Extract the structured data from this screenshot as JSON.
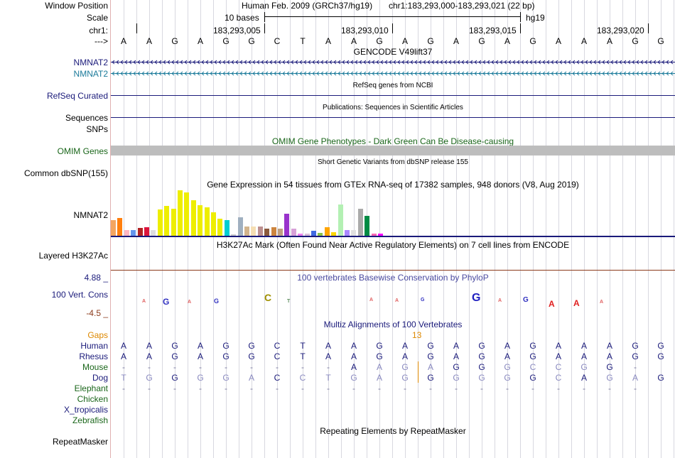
{
  "labels": {
    "window_position": "Window Position",
    "scale": "Scale",
    "chr": "chr1:",
    "strand": "--->",
    "nmnat2_a": "NMNAT2",
    "nmnat2_b": "NMNAT2",
    "refseq": "RefSeq Curated",
    "sequences": "Sequences",
    "snps": "SNPs",
    "omim": "OMIM Genes",
    "common_dbsnp": "Common dbSNP(155)",
    "gtex_gene": "NMNAT2",
    "h3k27ac": "Layered H3K27Ac",
    "cons": "100 Vert. Cons",
    "cons_max": "4.88 _",
    "cons_min": "-4.5 _",
    "gaps": "Gaps",
    "species": [
      "Human",
      "Rhesus",
      "Mouse",
      "Dog",
      "Elephant",
      "Chicken",
      "X_tropicalis",
      "Zebrafish"
    ],
    "repeatmasker": "RepeatMasker"
  },
  "colors": {
    "navy": "#1a1a7a",
    "teal": "#1a7a9a",
    "dark_green": "#1a661a",
    "orange": "#dd8800",
    "omim_bar": "#bdbdbd",
    "h3k_line": "#8b3a1a",
    "phylop_title": "#4a4aa0"
  },
  "header": {
    "assembly": "Human Feb. 2009 (GRCh37/hg19)",
    "position": "chr1:183,293,000-183,293,021 (22 bp)",
    "scale_label": "10 bases",
    "scale_db": "hg19",
    "coords": [
      "183,293,005",
      "183,293,010",
      "183,293,015",
      "183,293,020"
    ]
  },
  "sequence": [
    "A",
    "A",
    "G",
    "A",
    "G",
    "G",
    "C",
    "T",
    "A",
    "A",
    "G",
    "A",
    "G",
    "A",
    "G",
    "A",
    "G",
    "A",
    "A",
    "A",
    "G",
    "G"
  ],
  "tracks": {
    "gencode_title": "GENCODE V49lift37",
    "refseq_title": "RefSeq genes from NCBI",
    "publications_title": "Publications: Sequences in Scientific Articles",
    "omim_title": "OMIM Gene Phenotypes - Dark Green Can Be Disease-causing",
    "dbsnp_title": "Short Genetic Variants from dbSNP release 155",
    "gtex_title": "Gene Expression in 54 tissues from GTEx RNA-seq of 17382 samples, 948 donors (V8, Aug 2019)",
    "h3k27ac_title": "H3K27Ac Mark (Often Found Near Active Regulatory Elements) on 7 cell lines from ENCODE",
    "phylop_title": "100 vertebrates Basewise Conservation by PhyloP",
    "multiz_title": "Multiz Alignments of 100 Vertebrates",
    "gap_count": "13",
    "repeatmasker_title": "Repeating Elements by RepeatMasker"
  },
  "gtex_bars": [
    {
      "h": 0.35,
      "c": "#f4a560"
    },
    {
      "h": 0.39,
      "c": "#ff7f0e"
    },
    {
      "h": 0.12,
      "c": "#ffb6c1"
    },
    {
      "h": 0.12,
      "c": "#6495ed"
    },
    {
      "h": 0.17,
      "c": "#b22222"
    },
    {
      "h": 0.19,
      "c": "#dc143c"
    },
    {
      "h": 0.12,
      "c": "#ddd"
    },
    {
      "h": 0.58,
      "c": "#eeee00"
    },
    {
      "h": 0.65,
      "c": "#eeee00"
    },
    {
      "h": 0.6,
      "c": "#eeee00"
    },
    {
      "h": 1.0,
      "c": "#eeee00"
    },
    {
      "h": 0.96,
      "c": "#eeee00"
    },
    {
      "h": 0.78,
      "c": "#eeee00"
    },
    {
      "h": 0.67,
      "c": "#eeee00"
    },
    {
      "h": 0.62,
      "c": "#eeee00"
    },
    {
      "h": 0.52,
      "c": "#eeee00"
    },
    {
      "h": 0.37,
      "c": "#eeee00"
    },
    {
      "h": 0.35,
      "c": "#00ced1"
    },
    {
      "h": 0.03,
      "c": "#ccc"
    },
    {
      "h": 0.4,
      "c": "#a0b0c0"
    },
    {
      "h": 0.2,
      "c": "#d2b48c"
    },
    {
      "h": 0.2,
      "c": "#f5deb3"
    },
    {
      "h": 0.2,
      "c": "#bc8f8f"
    },
    {
      "h": 0.15,
      "c": "#8b5a3c"
    },
    {
      "h": 0.19,
      "c": "#cd853f"
    },
    {
      "h": 0.15,
      "c": "#c0a080"
    },
    {
      "h": 0.49,
      "c": "#9933cc"
    },
    {
      "h": 0.16,
      "c": "#d8a0d8"
    },
    {
      "h": 0.05,
      "c": "#ee82ee"
    },
    {
      "h": 0.04,
      "c": "#d8bfd8"
    },
    {
      "h": 0.11,
      "c": "#4169e1"
    },
    {
      "h": 0.07,
      "c": "#8bc34a"
    },
    {
      "h": 0.19,
      "c": "#ffa500"
    },
    {
      "h": 0.08,
      "c": "#ffd700"
    },
    {
      "h": 0.69,
      "c": "#b3f0b3"
    },
    {
      "h": 0.12,
      "c": "#aa88ff"
    },
    {
      "h": 0.12,
      "c": "#e0e0e0"
    },
    {
      "h": 0.6,
      "c": "#aaaaaa"
    },
    {
      "h": 0.44,
      "c": "#008b45"
    },
    {
      "h": 0.05,
      "c": "#ff69b4"
    },
    {
      "h": 0.04,
      "c": "#ff00ff"
    }
  ],
  "alignments": {
    "human": {
      "seq": [
        "A",
        "A",
        "G",
        "A",
        "G",
        "G",
        "C",
        "T",
        "A",
        "A",
        "G",
        "A",
        "G",
        "A",
        "G",
        "A",
        "G",
        "A",
        "A",
        "A",
        "G",
        "G"
      ],
      "style": [
        "n",
        "n",
        "n",
        "n",
        "n",
        "n",
        "n",
        "n",
        "n",
        "n",
        "n",
        "n",
        "n",
        "n",
        "n",
        "n",
        "n",
        "n",
        "n",
        "n",
        "n",
        "n"
      ]
    },
    "rhesus": {
      "seq": [
        "A",
        "A",
        "G",
        "A",
        "G",
        "G",
        "C",
        "T",
        "A",
        "A",
        "G",
        "A",
        "G",
        "A",
        "G",
        "A",
        "G",
        "A",
        "A",
        "A",
        "G",
        "G"
      ],
      "style": [
        "n",
        "n",
        "n",
        "n",
        "n",
        "n",
        "n",
        "n",
        "n",
        "n",
        "n",
        "n",
        "n",
        "n",
        "n",
        "n",
        "n",
        "n",
        "n",
        "n",
        "n",
        "n"
      ]
    },
    "mouse": {
      "seq": [
        "-",
        "-",
        "-",
        "-",
        "-",
        "-",
        "-",
        "-",
        "-",
        "A",
        "A",
        "G",
        "A",
        "G",
        "G",
        "G",
        "C",
        "C",
        "G",
        "G",
        "-",
        ""
      ],
      "style": [
        "g",
        "g",
        "g",
        "g",
        "g",
        "g",
        "g",
        "g",
        "g",
        "n",
        "l",
        "l",
        "l",
        "n",
        "n",
        "l",
        "l",
        "l",
        "l",
        "n",
        "g",
        "g"
      ]
    },
    "dog": {
      "seq": [
        "T",
        "G",
        "G",
        "G",
        "G",
        "A",
        "C",
        "C",
        "T",
        "G",
        "A",
        "G",
        "G",
        "G",
        "G",
        "G",
        "G",
        "C",
        "A",
        "G",
        "A",
        "G"
      ],
      "style": [
        "l",
        "l",
        "n",
        "l",
        "l",
        "l",
        "n",
        "l",
        "l",
        "l",
        "l",
        "l",
        "n",
        "l",
        "l",
        "l",
        "n",
        "l",
        "n",
        "l",
        "l",
        "n"
      ]
    },
    "elephant": {
      "seq": [
        "-",
        "-",
        "-",
        "-",
        "-",
        "-",
        "-",
        "-",
        "-",
        "-",
        "-",
        "-",
        "-",
        "-",
        "-",
        "-",
        "-",
        "-",
        "-",
        "-",
        "-",
        ""
      ],
      "style": [
        "g",
        "g",
        "g",
        "g",
        "g",
        "g",
        "g",
        "g",
        "g",
        "g",
        "g",
        "g",
        "g",
        "g",
        "g",
        "g",
        "g",
        "g",
        "g",
        "g",
        "g",
        "g"
      ]
    }
  }
}
